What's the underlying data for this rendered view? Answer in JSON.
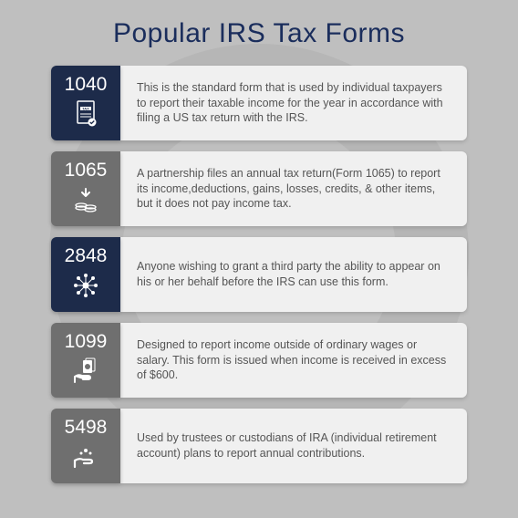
{
  "title": "Popular IRS Tax Forms",
  "colors": {
    "navy": "#1d2b4a",
    "gray": "#6f6f6f",
    "title": "#1a2d5c",
    "card_bg": "#f0f0f0",
    "page_bg": "#bfbfbf",
    "text": "#555555"
  },
  "cards": [
    {
      "number": "1040",
      "icon_color": "#1d2b4a",
      "icon": "tax-doc",
      "description": "This is the standard form that is used by individual taxpayers to report their taxable income for the year in accordance with filing a US tax return with the IRS."
    },
    {
      "number": "1065",
      "icon_color": "#6f6f6f",
      "icon": "coins-down",
      "description": "A partnership files an annual tax return(Form 1065) to report its income,deductions, gains, losses, credits, & other items, but it does not pay income tax."
    },
    {
      "number": "2848",
      "icon_color": "#1d2b4a",
      "icon": "network",
      "description": "Anyone wishing to grant a third party the ability to appear on his or her behalf before the IRS can use this form."
    },
    {
      "number": "1099",
      "icon_color": "#6f6f6f",
      "icon": "money-hand",
      "description": "Designed to report income outside of ordinary wages or salary. This form is issued when income is received in excess of $600."
    },
    {
      "number": "5498",
      "icon_color": "#6f6f6f",
      "icon": "give-hand",
      "description": "Used by trustees or custodians of IRA (individual retirement account) plans to report annual contributions."
    }
  ]
}
